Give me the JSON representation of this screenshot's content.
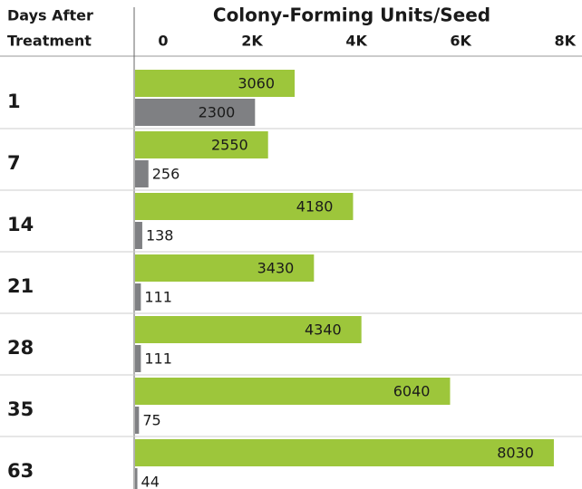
{
  "chart_data": {
    "type": "bar",
    "orientation": "horizontal",
    "title": "Colony-Forming Units/Seed",
    "category_header": [
      "Days After",
      "Treatment"
    ],
    "categories": [
      "1",
      "7",
      "14",
      "21",
      "28",
      "35",
      "63"
    ],
    "series": [
      {
        "color": "#9dc63b",
        "values": [
          3060,
          2550,
          4180,
          3430,
          4340,
          6040,
          8030
        ]
      },
      {
        "color": "#7f8083",
        "values": [
          2300,
          256,
          138,
          111,
          111,
          75,
          44
        ]
      }
    ],
    "xlim": [
      0,
      8500
    ],
    "xticks": [
      0,
      {
        "value": 2000,
        "label": "2K"
      },
      {
        "value": 4000,
        "label": "4K"
      },
      {
        "value": 6000,
        "label": "6K"
      },
      {
        "value": 8000,
        "label": "8K"
      }
    ]
  }
}
